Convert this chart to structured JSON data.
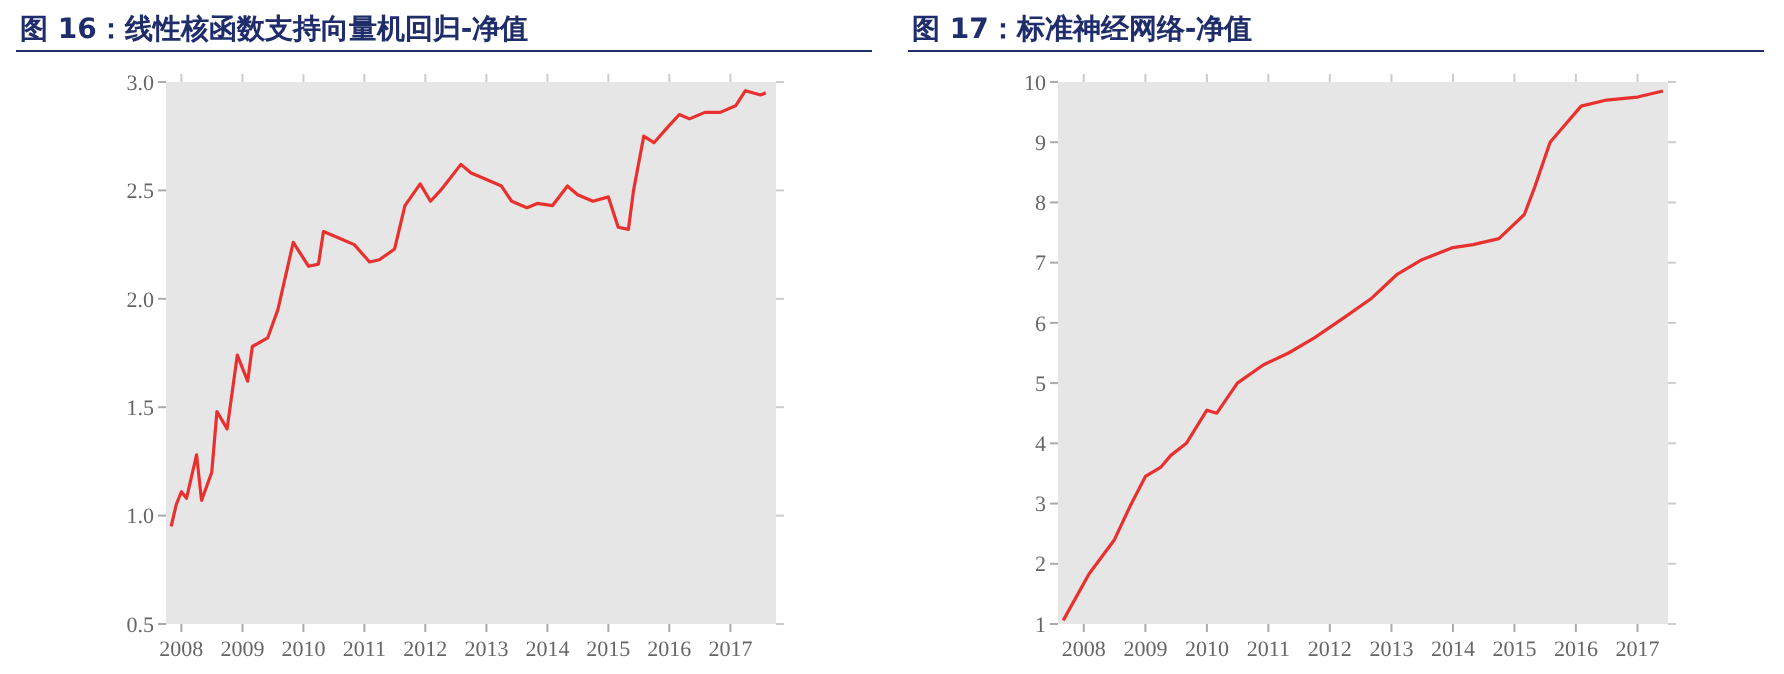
{
  "chart_data": [
    {
      "type": "line",
      "title": "图 16：线性核函数支持向量机回归-净值",
      "x": [
        "2007-11",
        "2007-12",
        "2008-01",
        "2008-02",
        "2008-04",
        "2008-05",
        "2008-07",
        "2008-08",
        "2008-10",
        "2008-12",
        "2009-02",
        "2009-03",
        "2009-06",
        "2009-08",
        "2009-11",
        "2010-02",
        "2010-04",
        "2010-05",
        "2010-08",
        "2010-11",
        "2011-02",
        "2011-04",
        "2011-07",
        "2011-09",
        "2011-12",
        "2012-02",
        "2012-04",
        "2012-06",
        "2012-08",
        "2012-10",
        "2013-01",
        "2013-04",
        "2013-06",
        "2013-09",
        "2013-11",
        "2014-02",
        "2014-05",
        "2014-07",
        "2014-10",
        "2015-01",
        "2015-03",
        "2015-05",
        "2015-06",
        "2015-08",
        "2015-10",
        "2016-01",
        "2016-03",
        "2016-05",
        "2016-08",
        "2016-11",
        "2017-02",
        "2017-04",
        "2017-07",
        "2017-08"
      ],
      "series": [
        {
          "color": "#e8312f",
          "values": [
            0.95,
            1.05,
            1.11,
            1.08,
            1.28,
            1.07,
            1.2,
            1.48,
            1.4,
            1.74,
            1.62,
            1.78,
            1.82,
            1.95,
            2.26,
            2.15,
            2.16,
            2.31,
            2.28,
            2.25,
            2.17,
            2.18,
            2.23,
            2.43,
            2.53,
            2.45,
            2.5,
            2.56,
            2.62,
            2.58,
            2.55,
            2.52,
            2.45,
            2.42,
            2.44,
            2.43,
            2.52,
            2.48,
            2.45,
            2.47,
            2.33,
            2.32,
            2.5,
            2.75,
            2.72,
            2.8,
            2.85,
            2.83,
            2.86,
            2.86,
            2.89,
            2.96,
            2.94,
            2.95
          ]
        }
      ],
      "xlim": [
        "2007-10",
        "2017-10"
      ],
      "xticks": [
        "2008",
        "2009",
        "2010",
        "2011",
        "2012",
        "2013",
        "2014",
        "2015",
        "2016",
        "2017"
      ],
      "ylim": [
        0.5,
        3.0
      ],
      "yticks": [
        {
          "value": 0.5,
          "label": "0.5"
        },
        {
          "value": 1,
          "label": "1.0"
        },
        {
          "value": 1.5,
          "label": "1.5"
        },
        {
          "value": 2,
          "label": "2.0"
        },
        {
          "value": 2.5,
          "label": "2.5"
        },
        {
          "value": 3,
          "label": "3.0"
        }
      ],
      "grid": false
    },
    {
      "type": "line",
      "title": "图 17：标准神经网络-净值",
      "x": [
        "2007-09",
        "2008-02",
        "2008-07",
        "2008-10",
        "2009-01",
        "2009-04",
        "2009-06",
        "2009-09",
        "2010-01",
        "2010-03",
        "2010-07",
        "2010-12",
        "2011-05",
        "2011-10",
        "2012-04",
        "2012-09",
        "2013-02",
        "2013-07",
        "2014-01",
        "2014-05",
        "2014-10",
        "2015-03",
        "2015-05",
        "2015-08",
        "2015-10",
        "2016-02",
        "2016-07",
        "2017-01",
        "2017-06"
      ],
      "series": [
        {
          "color": "#e8312f",
          "values": [
            1.06,
            1.83,
            2.4,
            2.95,
            3.45,
            3.6,
            3.8,
            4.0,
            4.55,
            4.5,
            5.0,
            5.3,
            5.5,
            5.75,
            6.1,
            6.4,
            6.8,
            7.05,
            7.25,
            7.3,
            7.4,
            7.8,
            8.25,
            9.0,
            9.2,
            9.6,
            9.7,
            9.75,
            9.85
          ]
        }
      ],
      "xlim": [
        "2007-08",
        "2017-07"
      ],
      "xticks": [
        "2008",
        "2009",
        "2010",
        "2011",
        "2012",
        "2013",
        "2014",
        "2015",
        "2016",
        "2017"
      ],
      "ylim": [
        1,
        10
      ],
      "yticks": [
        1,
        2,
        3,
        4,
        5,
        6,
        7,
        8,
        9,
        10
      ],
      "grid": false
    }
  ]
}
